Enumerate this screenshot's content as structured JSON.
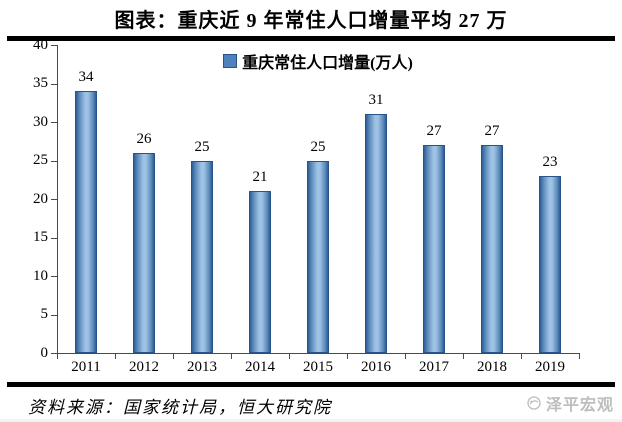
{
  "title": "图表：重庆近 9 年常住人口增量平均 27 万",
  "chart_data": {
    "type": "bar",
    "legend": "重庆常住人口增量(万人)",
    "categories": [
      "2011",
      "2012",
      "2013",
      "2014",
      "2015",
      "2016",
      "2017",
      "2018",
      "2019"
    ],
    "values": [
      34,
      26,
      25,
      21,
      25,
      31,
      27,
      27,
      23
    ],
    "title": "",
    "xlabel": "",
    "ylabel": "",
    "ylim": [
      0,
      40
    ],
    "yticks": [
      0,
      5,
      10,
      15,
      20,
      25,
      30,
      35,
      40
    ],
    "grid": false,
    "legend_position": "top-center",
    "data_labels": true
  },
  "footer": {
    "source": "资料来源：国家统计局，恒大研究院",
    "watermark": "泽平宏观"
  },
  "colors": {
    "bar_edge": "#2e5f95",
    "bar_mid_light": "#9ec2e4",
    "bar_border": "#27548a",
    "legend_swatch": "#4f81bd",
    "axis": "#4a4a4a",
    "text": "#000000",
    "watermark_gray": "#bdbdbd",
    "rule_black": "#000000"
  }
}
